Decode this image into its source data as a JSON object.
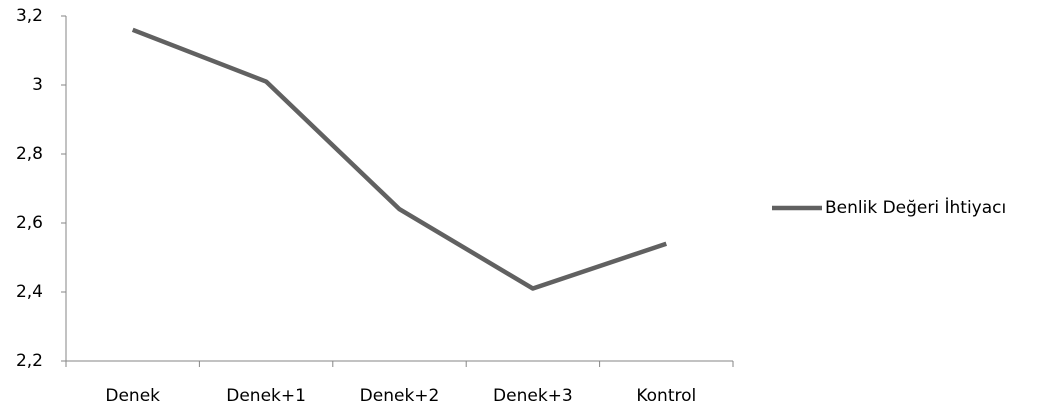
{
  "chart_data": {
    "type": "line",
    "categories": [
      "Denek",
      "Denek+1",
      "Denek+2",
      "Denek+3",
      "Kontrol"
    ],
    "series": [
      {
        "name": "Benlik Değeri İhtiyacı",
        "color": "#616161",
        "values": [
          3.16,
          3.01,
          2.64,
          2.41,
          2.54
        ]
      }
    ],
    "ylim": [
      2.2,
      3.2
    ],
    "yticks": [
      {
        "value": 2.2,
        "label": "2,2"
      },
      {
        "value": 2.4,
        "label": "2,4"
      },
      {
        "value": 2.6,
        "label": "2,6"
      },
      {
        "value": 2.8,
        "label": "2,8"
      },
      3,
      {
        "value": 3.2,
        "label": "3,2"
      }
    ],
    "grid": false,
    "legend": "right"
  }
}
